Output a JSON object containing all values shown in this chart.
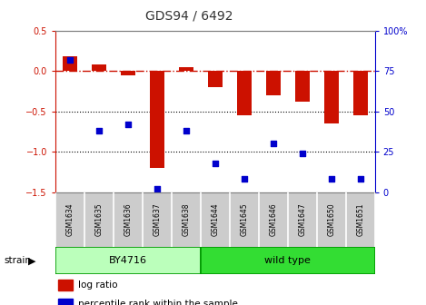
{
  "title": "GDS94 / 6492",
  "samples": [
    "GSM1634",
    "GSM1635",
    "GSM1636",
    "GSM1637",
    "GSM1638",
    "GSM1644",
    "GSM1645",
    "GSM1646",
    "GSM1647",
    "GSM1650",
    "GSM1651"
  ],
  "log_ratio": [
    0.18,
    0.08,
    -0.05,
    -1.2,
    0.05,
    -0.2,
    -0.55,
    -0.3,
    -0.38,
    -0.65,
    -0.55
  ],
  "percentile_rank": [
    82,
    38,
    42,
    2,
    38,
    18,
    8,
    30,
    24,
    8,
    8
  ],
  "strain_groups": [
    {
      "label": "BY4716",
      "start": 0,
      "end": 5,
      "color": "#bbffbb"
    },
    {
      "label": "wild type",
      "start": 5,
      "end": 11,
      "color": "#33dd33"
    }
  ],
  "ylim_left": [
    -1.5,
    0.5
  ],
  "ylim_right": [
    0,
    100
  ],
  "bar_color": "#cc1100",
  "dot_color": "#0000cc",
  "hline_color": "#cc1100",
  "dotline1": -0.5,
  "dotline2": -1.0,
  "background_color": "#ffffff",
  "left_axis_color": "#cc1100",
  "right_axis_color": "#0000cc",
  "yticks_left": [
    -1.5,
    -1.0,
    -0.5,
    0.0,
    0.5
  ],
  "yticks_right": [
    0,
    25,
    50,
    75,
    100
  ],
  "ytick_labels_right": [
    "0",
    "25",
    "50",
    "75",
    "100%"
  ]
}
